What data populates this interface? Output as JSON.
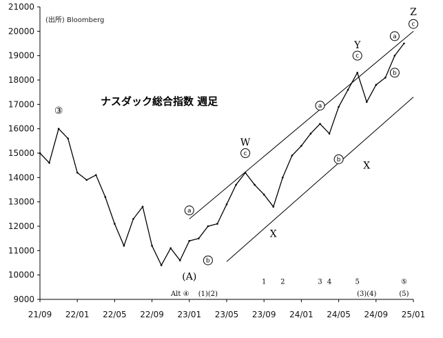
{
  "source_text": "(出所) Bloomberg",
  "chart_data": {
    "type": "line",
    "title": "ナスダック総合指数 週足",
    "xlabel": "",
    "ylabel": "",
    "ylim": [
      9000,
      21000
    ],
    "xlim": [
      "2021-09",
      "2025-01"
    ],
    "yticks": [
      9000,
      10000,
      11000,
      12000,
      13000,
      14000,
      15000,
      16000,
      17000,
      18000,
      19000,
      20000,
      21000
    ],
    "xticks": [
      "21/09",
      "22/01",
      "22/05",
      "22/09",
      "23/01",
      "23/05",
      "23/09",
      "24/01",
      "24/05",
      "24/09",
      "25/01"
    ],
    "grid": false,
    "legend": "none",
    "series": [
      {
        "x": [
          "2021-09",
          "2021-10",
          "2021-11",
          "2021-12",
          "2022-01",
          "2022-02",
          "2022-03",
          "2022-04",
          "2022-05",
          "2022-06",
          "2022-07",
          "2022-08",
          "2022-09",
          "2022-10",
          "2022-11",
          "2022-12",
          "2023-01",
          "2023-02",
          "2023-03",
          "2023-04",
          "2023-05",
          "2023-06",
          "2023-07",
          "2023-08",
          "2023-09",
          "2023-10",
          "2023-11",
          "2023-12",
          "2024-01",
          "2024-02",
          "2024-03",
          "2024-04",
          "2024-05",
          "2024-06",
          "2024-07",
          "2024-08",
          "2024-09",
          "2024-10",
          "2024-11",
          "2024-12"
        ],
        "values": [
          15000,
          14600,
          16000,
          15600,
          14200,
          13900,
          14100,
          13200,
          12100,
          11200,
          12300,
          12800,
          11200,
          10400,
          11100,
          10600,
          11400,
          11500,
          12000,
          12100,
          12900,
          13700,
          14200,
          13700,
          13300,
          12800,
          14000,
          14900,
          15300,
          15800,
          16200,
          15800,
          16900,
          17600,
          18300,
          17100,
          17800,
          18100,
          19000,
          19500
        ]
      }
    ],
    "annotations": {
      "waves": [
        {
          "label": "③",
          "x": "2021-11",
          "y": 16750
        },
        {
          "label": "W",
          "x": "2023-07",
          "y": 15450
        },
        {
          "label": "c",
          "x": "2023-07",
          "y": 15000
        },
        {
          "label": "a",
          "x": "2023-01",
          "y": 12650
        },
        {
          "label": "b",
          "x": "2023-03",
          "y": 10600
        },
        {
          "label": "(A)",
          "x": "2023-01",
          "y": 9950
        },
        {
          "label": "X",
          "x": "2023-10",
          "y": 11700
        },
        {
          "label": "a",
          "x": "2024-03",
          "y": 16950
        },
        {
          "label": "b",
          "x": "2024-05",
          "y": 14750
        },
        {
          "label": "Y",
          "x": "2024-07",
          "y": 19450
        },
        {
          "label": "c",
          "x": "2024-07",
          "y": 19000
        },
        {
          "label": "X",
          "x": "2024-08",
          "y": 14500
        },
        {
          "label": "a",
          "x": "2024-11",
          "y": 19800
        },
        {
          "label": "b",
          "x": "2024-11",
          "y": 18300
        },
        {
          "label": "Z",
          "x": "2025-01",
          "y": 20800
        },
        {
          "label": "c",
          "x": "2025-01",
          "y": 20300
        }
      ],
      "counts": [
        {
          "label": "Alt ④",
          "x": "2022-12",
          "y": 9250
        },
        {
          "label": "(1)(2)",
          "x": "2023-03",
          "y": 9250
        },
        {
          "label": "1",
          "x": "2023-09",
          "y": 9750
        },
        {
          "label": "2",
          "x": "2023-11",
          "y": 9750
        },
        {
          "label": "3",
          "x": "2024-03",
          "y": 9750
        },
        {
          "label": "4",
          "x": "2024-04",
          "y": 9750
        },
        {
          "label": "5",
          "x": "2024-07",
          "y": 9750
        },
        {
          "label": "(3)(4)",
          "x": "2024-08",
          "y": 9250
        },
        {
          "label": "⑤",
          "x": "2024-12",
          "y": 9750
        },
        {
          "label": "(5)",
          "x": "2024-12",
          "y": 9250
        }
      ],
      "channel": [
        {
          "from": {
            "x": "2023-01",
            "y": 12300
          },
          "to": {
            "x": "2025-01",
            "y": 20000
          }
        },
        {
          "from": {
            "x": "2023-05",
            "y": 10550
          },
          "to": {
            "x": "2025-01",
            "y": 17300
          }
        }
      ]
    }
  }
}
